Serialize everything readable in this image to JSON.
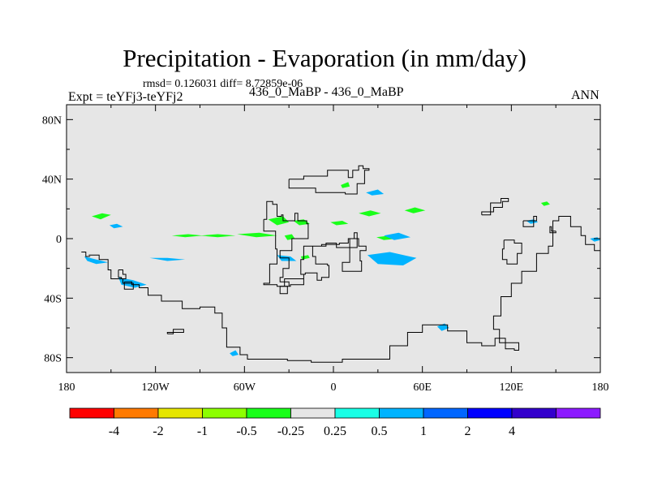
{
  "chart_data": {
    "type": "contour-map",
    "title": "Precipitation - Evaporation (in mm/day)",
    "stats": {
      "label": "rmsd= 0.126031 diff= 8.72859e-06",
      "rmsd": 0.126031,
      "diff": 8.72859e-06
    },
    "experiment_label": "Expt = teYFj3-teYFj2",
    "center_label": "436_0_MaBP - 436_0_MaBP",
    "season": "ANN",
    "units": "mm/day",
    "x_axis": {
      "range": [
        -180,
        180
      ],
      "ticks": [
        {
          "value": -180,
          "label": "180"
        },
        {
          "value": -120,
          "label": "120W"
        },
        {
          "value": -60,
          "label": "60W"
        },
        {
          "value": 0,
          "label": "0"
        },
        {
          "value": 60,
          "label": "60E"
        },
        {
          "value": 120,
          "label": "120E"
        },
        {
          "value": 180,
          "label": "180"
        }
      ]
    },
    "y_axis": {
      "range": [
        -90,
        90
      ],
      "ticks": [
        {
          "value": 80,
          "label": "80N"
        },
        {
          "value": 40,
          "label": "40N"
        },
        {
          "value": 0,
          "label": "0"
        },
        {
          "value": -40,
          "label": "40S"
        },
        {
          "value": -80,
          "label": "80S"
        }
      ]
    },
    "colorbar": {
      "colors": [
        "#ff0000",
        "#ff7a00",
        "#e6e600",
        "#8cff00",
        "#19ff19",
        "#e6e6e6",
        "#19ffe6",
        "#00b3ff",
        "#0066ff",
        "#0000ff",
        "#3300cc",
        "#8c1aff"
      ],
      "labels": [
        "-4",
        "-2",
        "-1",
        "-0.5",
        "-0.25",
        "0.25",
        "0.5",
        "1",
        "2",
        "4"
      ]
    },
    "field_regions": [
      {
        "class": "-0.5",
        "points": [
          [
            -163,
            15
          ],
          [
            -156,
            17
          ],
          [
            -150,
            16
          ],
          [
            -157,
            13
          ]
        ]
      },
      {
        "class": "0.5",
        "points": [
          [
            -151,
            9
          ],
          [
            -146,
            10
          ],
          [
            -142,
            8
          ],
          [
            -148,
            7
          ]
        ]
      },
      {
        "class": "-0.5",
        "points": [
          [
            -109,
            2
          ],
          [
            -98,
            3
          ],
          [
            -88,
            2
          ],
          [
            -100,
            1
          ]
        ]
      },
      {
        "class": "-0.5",
        "points": [
          [
            -90,
            2
          ],
          [
            -78,
            3
          ],
          [
            -66,
            2
          ],
          [
            -78,
            1
          ]
        ]
      },
      {
        "class": "-0.5",
        "points": [
          [
            -65,
            3
          ],
          [
            -50,
            4
          ],
          [
            -38,
            2
          ],
          [
            -52,
            1
          ]
        ]
      },
      {
        "class": "-0.5",
        "points": [
          [
            -44,
            13
          ],
          [
            -34,
            15
          ],
          [
            -30,
            11
          ],
          [
            -38,
            9
          ]
        ]
      },
      {
        "class": "-0.5",
        "points": [
          [
            -27,
            12
          ],
          [
            -20,
            13
          ],
          [
            -16,
            10
          ],
          [
            -23,
            9
          ]
        ]
      },
      {
        "class": "-0.5",
        "points": [
          [
            -2,
            11
          ],
          [
            6,
            12
          ],
          [
            10,
            10
          ],
          [
            2,
            9
          ]
        ]
      },
      {
        "class": "-0.5",
        "points": [
          [
            -33,
            2
          ],
          [
            -28,
            3
          ],
          [
            -26,
            0
          ],
          [
            -31,
            -1
          ]
        ]
      },
      {
        "class": "-0.5",
        "points": [
          [
            -22,
            -12
          ],
          [
            -17,
            -11
          ],
          [
            -16,
            -13
          ],
          [
            -21,
            -14
          ]
        ]
      },
      {
        "class": "-0.5",
        "points": [
          [
            5,
            36
          ],
          [
            10,
            38
          ],
          [
            11,
            35
          ],
          [
            6,
            34
          ]
        ]
      },
      {
        "class": "-0.5",
        "points": [
          [
            17,
            17
          ],
          [
            25,
            19
          ],
          [
            32,
            17
          ],
          [
            24,
            15
          ]
        ]
      },
      {
        "class": "-0.5",
        "points": [
          [
            48,
            19
          ],
          [
            55,
            21
          ],
          [
            62,
            19
          ],
          [
            54,
            17
          ]
        ]
      },
      {
        "class": "-0.5",
        "points": [
          [
            29,
            1
          ],
          [
            38,
            2
          ],
          [
            43,
            0
          ],
          [
            34,
            -1
          ]
        ]
      },
      {
        "class": "0.5",
        "points": [
          [
            -168,
            -12
          ],
          [
            -160,
            -14
          ],
          [
            -152,
            -16
          ],
          [
            -160,
            -17
          ],
          [
            -166,
            -15
          ]
        ]
      },
      {
        "class": "0.5",
        "points": [
          [
            -145,
            -26
          ],
          [
            -135,
            -28
          ],
          [
            -126,
            -31
          ],
          [
            -134,
            -33
          ],
          [
            -143,
            -31
          ]
        ]
      },
      {
        "class": "0.5",
        "points": [
          [
            -124,
            -13
          ],
          [
            -112,
            -13
          ],
          [
            -100,
            -14
          ],
          [
            -112,
            -15
          ]
        ]
      },
      {
        "class": "0.5",
        "points": [
          [
            -38,
            -11
          ],
          [
            -29,
            -12
          ],
          [
            -25,
            -15
          ],
          [
            -35,
            -15
          ]
        ]
      },
      {
        "class": "0.5",
        "points": [
          [
            22,
            31
          ],
          [
            30,
            33
          ],
          [
            34,
            30
          ],
          [
            26,
            29
          ]
        ]
      },
      {
        "class": "0.5",
        "points": [
          [
            23,
            -11
          ],
          [
            38,
            -9
          ],
          [
            56,
            -13
          ],
          [
            47,
            -18
          ],
          [
            30,
            -17
          ]
        ]
      },
      {
        "class": "0.5",
        "points": [
          [
            34,
            2
          ],
          [
            44,
            4
          ],
          [
            52,
            1
          ],
          [
            41,
            -1
          ]
        ]
      },
      {
        "class": "0.5",
        "points": [
          [
            -70,
            -77
          ],
          [
            -66,
            -75
          ],
          [
            -64,
            -78
          ],
          [
            -68,
            -79
          ]
        ]
      },
      {
        "class": "-0.25",
        "points": [
          [
            -21,
            -72
          ],
          [
            -17,
            -71
          ],
          [
            -15,
            -74
          ],
          [
            -19,
            -75
          ]
        ]
      },
      {
        "class": "0.5",
        "points": [
          [
            70,
            -59
          ],
          [
            75,
            -57
          ],
          [
            78,
            -60
          ],
          [
            73,
            -62
          ]
        ]
      },
      {
        "class": "0.5",
        "points": [
          [
            130,
            12
          ],
          [
            135,
            13
          ],
          [
            138,
            11
          ],
          [
            133,
            10
          ]
        ]
      },
      {
        "class": "0.5",
        "points": [
          [
            173,
            0
          ],
          [
            178,
            1
          ],
          [
            180,
            -1
          ],
          [
            176,
            -2
          ]
        ]
      },
      {
        "class": "-0.5",
        "points": [
          [
            140,
            24
          ],
          [
            144,
            25
          ],
          [
            146,
            23
          ],
          [
            142,
            22
          ]
        ]
      }
    ],
    "coastlines": [
      [
        [
          -165,
          -11
        ],
        [
          -158,
          -14
        ],
        [
          -152,
          -21
        ],
        [
          -150,
          -27
        ],
        [
          -142,
          -30
        ],
        [
          -135,
          -31
        ],
        [
          -131,
          -33
        ],
        [
          -125,
          -38
        ],
        [
          -116,
          -42
        ],
        [
          -110,
          -42
        ],
        [
          -102,
          -47
        ],
        [
          -90,
          -46
        ],
        [
          -80,
          -50
        ],
        [
          -75,
          -60
        ],
        [
          -72,
          -73
        ],
        [
          -63,
          -78
        ],
        [
          -58,
          -81
        ],
        [
          -31,
          -82
        ],
        [
          -15,
          -83
        ],
        [
          6,
          -81
        ],
        [
          19,
          -81
        ],
        [
          38,
          -72
        ],
        [
          50,
          -63
        ],
        [
          60,
          -58
        ],
        [
          77,
          -62
        ],
        [
          90,
          -70
        ],
        [
          100,
          -72
        ],
        [
          109,
          -67
        ],
        [
          116,
          -74
        ],
        [
          122,
          -75
        ],
        [
          125,
          -70
        ],
        [
          112,
          -61
        ],
        [
          108,
          -52
        ],
        [
          113,
          -39
        ],
        [
          120,
          -30
        ],
        [
          127,
          -22
        ],
        [
          137,
          -10
        ],
        [
          145,
          -5
        ],
        [
          148,
          4
        ],
        [
          148,
          12
        ],
        [
          152,
          15
        ],
        [
          160,
          8
        ],
        [
          167,
          2
        ],
        [
          170,
          -4
        ],
        [
          176,
          -8
        ],
        [
          180,
          -10
        ]
      ],
      [
        [
          -47,
          13
        ],
        [
          -45,
          25
        ],
        [
          -41,
          23
        ],
        [
          -38,
          15
        ],
        [
          -35,
          16
        ],
        [
          -34,
          12
        ],
        [
          -26,
          17
        ],
        [
          -24,
          12
        ],
        [
          -18,
          10
        ],
        [
          -17,
          0
        ],
        [
          -27,
          0
        ],
        [
          -28,
          -8
        ],
        [
          -36,
          -13
        ],
        [
          -30,
          -20
        ],
        [
          -34,
          -26
        ],
        [
          -36,
          -29
        ],
        [
          -30,
          -32
        ],
        [
          -33,
          -27
        ],
        [
          -20,
          -24
        ],
        [
          -22,
          -14
        ],
        [
          -20,
          -5
        ],
        [
          -5,
          -3
        ],
        [
          2,
          -6
        ],
        [
          16,
          -6
        ],
        [
          16,
          4
        ],
        [
          14,
          0
        ],
        [
          10,
          -3
        ],
        [
          4,
          -4
        ],
        [
          -8,
          -5
        ],
        [
          -14,
          -12
        ],
        [
          -12,
          -17
        ],
        [
          -4,
          -18
        ],
        [
          -3,
          -26
        ],
        [
          -8,
          -28
        ],
        [
          -11,
          -23
        ],
        [
          -19,
          -24
        ],
        [
          -20,
          -31
        ],
        [
          -29,
          -32
        ],
        [
          -38,
          -31
        ],
        [
          -47,
          -30
        ],
        [
          -43,
          -17
        ],
        [
          -38,
          -7
        ],
        [
          -39,
          5
        ],
        [
          -47,
          13
        ]
      ],
      [
        [
          -30,
          40
        ],
        [
          -20,
          42
        ],
        [
          -4,
          46
        ],
        [
          10,
          41
        ],
        [
          13,
          46
        ],
        [
          17,
          49
        ],
        [
          20,
          47
        ],
        [
          24,
          46
        ],
        [
          21,
          37
        ],
        [
          16,
          30
        ],
        [
          8,
          31
        ],
        [
          -6,
          31
        ],
        [
          -12,
          34
        ],
        [
          -20,
          34
        ],
        [
          -30,
          40
        ]
      ],
      [
        [
          11,
          0
        ],
        [
          17,
          -5
        ],
        [
          22,
          -8
        ],
        [
          18,
          -15
        ],
        [
          19,
          -22
        ],
        [
          9,
          -22
        ],
        [
          6,
          -16
        ],
        [
          11,
          -8
        ],
        [
          11,
          0
        ]
      ],
      [
        [
          -170,
          -9
        ],
        [
          -167,
          -12
        ],
        [
          -164,
          -12
        ],
        [
          -167,
          -9
        ],
        [
          -170,
          -9
        ]
      ],
      [
        [
          -145,
          -21
        ],
        [
          -142,
          -24
        ],
        [
          -140,
          -27
        ],
        [
          -143,
          -26
        ],
        [
          -145,
          -21
        ]
      ],
      [
        [
          -141,
          -29
        ],
        [
          -136,
          -31
        ],
        [
          -135,
          -34
        ],
        [
          -141,
          -33
        ],
        [
          -141,
          -29
        ]
      ],
      [
        [
          -36,
          -32
        ],
        [
          -31,
          -33
        ],
        [
          -31,
          -37
        ],
        [
          -36,
          -36
        ],
        [
          -36,
          -32
        ]
      ],
      [
        [
          128,
          12
        ],
        [
          137,
          15
        ],
        [
          135,
          8
        ],
        [
          128,
          12
        ]
      ],
      [
        [
          150,
          5
        ],
        [
          147,
          8
        ],
        [
          146,
          4
        ],
        [
          150,
          5
        ]
      ],
      [
        [
          115,
          -1
        ],
        [
          122,
          -3
        ],
        [
          127,
          -10
        ],
        [
          124,
          -17
        ],
        [
          117,
          -14
        ],
        [
          114,
          -7
        ],
        [
          115,
          -1
        ]
      ],
      [
        [
          100,
          16
        ],
        [
          106,
          24
        ],
        [
          113,
          27
        ],
        [
          118,
          25
        ],
        [
          114,
          21
        ],
        [
          108,
          18
        ],
        [
          100,
          16
        ]
      ],
      [
        [
          -112,
          -64
        ],
        [
          -108,
          -61
        ],
        [
          -101,
          -63
        ],
        [
          -112,
          -64
        ]
      ]
    ]
  }
}
